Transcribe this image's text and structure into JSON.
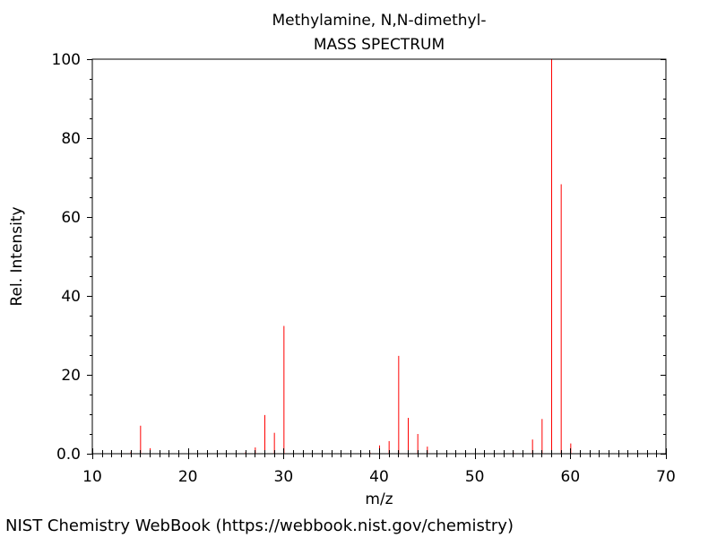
{
  "chart_data": {
    "type": "bar",
    "title": "Methylamine, N,N-dimethyl-",
    "subtitle": "MASS SPECTRUM",
    "xlabel": "m/z",
    "ylabel": "Rel. Intensity",
    "xlim": [
      10,
      70
    ],
    "ylim": [
      0,
      100
    ],
    "x_ticks": [
      10,
      20,
      30,
      40,
      50,
      60,
      70
    ],
    "y_ticks": [
      0,
      20,
      40,
      60,
      80,
      100
    ],
    "y_tick_labels": [
      "0.0",
      "20",
      "40",
      "60",
      "80",
      "100"
    ],
    "x_minor_step": 1,
    "y_minor_step": 5,
    "grid": false,
    "peak_color": "#ff0000",
    "peaks": [
      {
        "mz": 14,
        "intensity": 0.5
      },
      {
        "mz": 15,
        "intensity": 7.1
      },
      {
        "mz": 16,
        "intensity": 1.4
      },
      {
        "mz": 26,
        "intensity": 0.4
      },
      {
        "mz": 27,
        "intensity": 1.6
      },
      {
        "mz": 28,
        "intensity": 9.8
      },
      {
        "mz": 29,
        "intensity": 5.3
      },
      {
        "mz": 30,
        "intensity": 32.4
      },
      {
        "mz": 31,
        "intensity": 0.4
      },
      {
        "mz": 39,
        "intensity": 0.3
      },
      {
        "mz": 40,
        "intensity": 2.1
      },
      {
        "mz": 41,
        "intensity": 3.2
      },
      {
        "mz": 42,
        "intensity": 24.8
      },
      {
        "mz": 43,
        "intensity": 9.1
      },
      {
        "mz": 44,
        "intensity": 5.0
      },
      {
        "mz": 45,
        "intensity": 1.8
      },
      {
        "mz": 54,
        "intensity": 0.3
      },
      {
        "mz": 56,
        "intensity": 3.6
      },
      {
        "mz": 57,
        "intensity": 8.8
      },
      {
        "mz": 58,
        "intensity": 100.0
      },
      {
        "mz": 59,
        "intensity": 68.3
      },
      {
        "mz": 60,
        "intensity": 2.6
      }
    ]
  },
  "footer": {
    "credit": "NIST Chemistry WebBook (https://webbook.nist.gov/chemistry)"
  }
}
